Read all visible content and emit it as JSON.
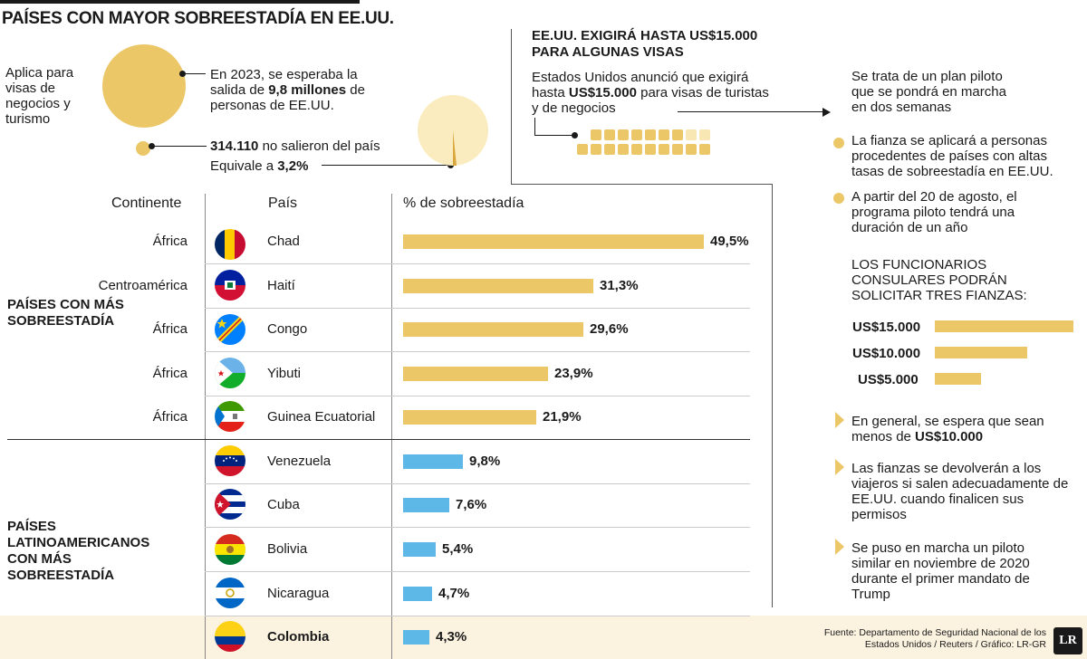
{
  "title": "PAÍSES CON MAYOR SOBREESTADÍA EN EE.UU.",
  "top": {
    "visa_label": "Aplica para visas de negocios y turismo",
    "expected_pre": "En 2023, se esperaba la salida de ",
    "expected_bold": "9,8 millones",
    "expected_post": " de personas de EE.UU.",
    "overstay_bold": "314.110",
    "overstay_text": " no salieron del país",
    "equiv_pre": "Equivale a ",
    "equiv_bold": "3,2%"
  },
  "headers": {
    "continent": "Continente",
    "country": "País",
    "pct": "% de sobreestadía"
  },
  "groups": {
    "g1": "PAÍSES CON MÁS SOBREESTADÍA",
    "g2": "PAÍSES LATINOAMERICANOS CON MÁS SOBREESTADÍA"
  },
  "colors": {
    "gold": "#ecc768",
    "blue": "#5db8e8",
    "highlight": "#fbf2e0"
  },
  "chart_data": {
    "type": "bar",
    "title": "% de sobreestadía",
    "xlim": [
      0,
      50
    ],
    "series": [
      {
        "name": "Países con más sobreestadía",
        "color": "#ecc768",
        "rows": [
          {
            "continent": "África",
            "country": "Chad",
            "value": 49.5,
            "label": "49,5%"
          },
          {
            "continent": "Centroamérica",
            "country": "Haití",
            "value": 31.3,
            "label": "31,3%"
          },
          {
            "continent": "África",
            "country": "Congo",
            "value": 29.6,
            "label": "29,6%"
          },
          {
            "continent": "África",
            "country": "Yibuti",
            "value": 23.9,
            "label": "23,9%"
          },
          {
            "continent": "África",
            "country": "Guinea Ecuatorial",
            "value": 21.9,
            "label": "21,9%"
          }
        ]
      },
      {
        "name": "Países latinoamericanos con más sobreestadía",
        "color": "#5db8e8",
        "rows": [
          {
            "continent": "",
            "country": "Venezuela",
            "value": 9.8,
            "label": "9,8%"
          },
          {
            "continent": "",
            "country": "Cuba",
            "value": 7.6,
            "label": "7,6%"
          },
          {
            "continent": "",
            "country": "Bolivia",
            "value": 5.4,
            "label": "5,4%"
          },
          {
            "continent": "",
            "country": "Nicaragua",
            "value": 4.7,
            "label": "4,7%"
          },
          {
            "continent": "",
            "country": "Colombia",
            "value": 4.3,
            "label": "4,3%",
            "highlight": true
          }
        ]
      }
    ],
    "fianzas": {
      "title": "LOS FUNCIONARIOS CONSULARES PODRÁN SOLICITAR TRES FIANZAS:",
      "categories": [
        "US$15.000",
        "US$10.000",
        "US$5.000"
      ],
      "values": [
        15000,
        10000,
        5000
      ]
    }
  },
  "right": {
    "title": "EE.UU. EXIGIRÁ HASTA US$15.000 PARA ALGUNAS VISAS",
    "announce_pre": "Estados Unidos anunció que exigirá hasta ",
    "announce_bold": "US$15.000",
    "announce_post": " para visas de turistas y de negocios",
    "pilot": "Se trata de un plan piloto que se pondrá en marcha en dos semanas",
    "bullet1": "La fianza se aplicará a personas procedentes de países con altas tasas de sobreestadía en EE.UU.",
    "bullet2": "A partir del 20 de agosto, el programa piloto tendrá una duración de un año",
    "tri1_pre": "En general, se espera que sean menos de ",
    "tri1_bold": "US$10.000",
    "tri2": "Las fianzas se devolverán a los viajeros si salen adecuadamente de EE.UU. cuando finalicen sus permisos",
    "tri3": "Se puso en marcha un piloto similar en noviembre de 2020 durante el primer mandato de Trump"
  },
  "source": "Fuente: Departamento de Seguridad Nacional de los Estados Unidos / Reuters / Gráfico: LR-GR",
  "logo": "LR"
}
